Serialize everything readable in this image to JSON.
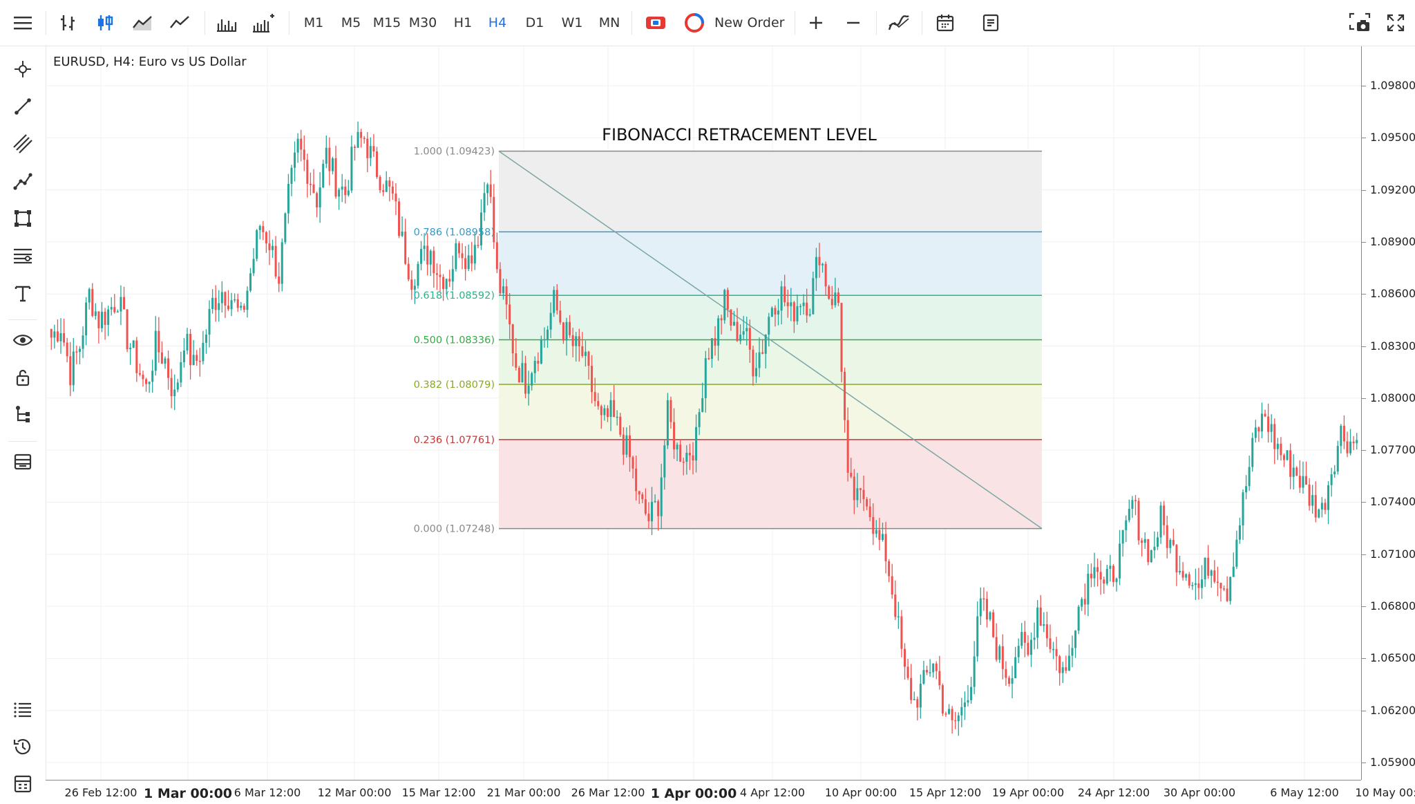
{
  "toolbar": {
    "menu_icon": "hamburger-menu-icon",
    "chart_types": [
      "bar-chart-icon",
      "candlestick-chart-icon",
      "area-chart-icon",
      "line-chart-icon",
      "volume-bars-icon",
      "indicators-bars-icon"
    ],
    "timeframes": [
      {
        "label": "M1",
        "active": false
      },
      {
        "label": "M5",
        "active": false
      },
      {
        "label": "M15",
        "active": false
      },
      {
        "label": "M30",
        "active": false
      },
      {
        "label": "H1",
        "active": false
      },
      {
        "label": "H4",
        "active": true
      },
      {
        "label": "D1",
        "active": false
      },
      {
        "label": "W1",
        "active": false
      },
      {
        "label": "MN",
        "active": false
      }
    ],
    "one_click_icon": "one-click-trading-icon",
    "new_order_label": "New Order",
    "zoom_in_icon": "plus-icon",
    "zoom_out_icon": "minus-icon",
    "indicators_icon": "indicators-icon",
    "calendar_icon": "calendar-icon",
    "templates_icon": "templates-icon",
    "screenshot_icon": "screenshot-icon",
    "fullscreen_icon": "fullscreen-icon"
  },
  "sidebar": {
    "tools": [
      "crosshair-icon",
      "trend-line-icon",
      "parallel-channel-icon",
      "polyline-icon",
      "shapes-icon",
      "fibonacci-icon",
      "text-icon",
      "eye-icon",
      "lock-icon",
      "object-tree-icon",
      "layers-icon"
    ],
    "bottom_tools": [
      "list-icon",
      "history-icon",
      "journal-icon"
    ]
  },
  "chart": {
    "symbol_label": "EURUSD, H4: Euro vs US Dollar",
    "title": "FIBONACCI RETRACEMENT LEVEL",
    "colors": {
      "up": "#26a69a",
      "down": "#ef5350"
    }
  },
  "chart_data": {
    "type": "candlestick",
    "symbol": "EURUSD",
    "timeframe": "H4",
    "ylim": [
      1.059,
      1.0985
    ],
    "price_ticks": [
      "1.09800",
      "1.09500",
      "1.09200",
      "1.08900",
      "1.08600",
      "1.08300",
      "1.08000",
      "1.07700",
      "1.07400",
      "1.07100",
      "1.06800",
      "1.06500",
      "1.06200",
      "1.05900"
    ],
    "time_ticks": [
      {
        "label": "26 Feb 12:00",
        "bold": false
      },
      {
        "label": "1 Mar 00:00",
        "bold": true
      },
      {
        "label": "6 Mar 12:00",
        "bold": false
      },
      {
        "label": "12 Mar 00:00",
        "bold": false
      },
      {
        "label": "15 Mar 12:00",
        "bold": false
      },
      {
        "label": "21 Mar 00:00",
        "bold": false
      },
      {
        "label": "26 Mar 12:00",
        "bold": false
      },
      {
        "label": "1 Apr 00:00",
        "bold": true
      },
      {
        "label": "4 Apr 12:00",
        "bold": false
      },
      {
        "label": "10 Apr 00:00",
        "bold": false
      },
      {
        "label": "15 Apr 12:00",
        "bold": false
      },
      {
        "label": "19 Apr 00:00",
        "bold": false
      },
      {
        "label": "24 Apr 12:00",
        "bold": false
      },
      {
        "label": "30 Apr 00:00",
        "bold": false
      },
      {
        "label": "6 May 12:00",
        "bold": false
      },
      {
        "label": "10 May 00:"
      }
    ],
    "close_path": [
      1.0835,
      1.0842,
      1.0815,
      1.083,
      1.086,
      1.0845,
      1.085,
      1.0858,
      1.0835,
      1.082,
      1.0805,
      1.083,
      1.0822,
      1.08,
      1.0835,
      1.0818,
      1.083,
      1.0855,
      1.0862,
      1.0858,
      1.0845,
      1.0872,
      1.09,
      1.089,
      1.087,
      1.0915,
      1.0945,
      1.0932,
      1.0915,
      1.094,
      1.0925,
      1.0918,
      1.0945,
      1.095,
      1.0935,
      1.0925,
      1.0915,
      1.089,
      1.087,
      1.088,
      1.0885,
      1.087,
      1.0872,
      1.089,
      1.088,
      1.0895,
      1.0932,
      1.087,
      1.085,
      1.082,
      1.081,
      1.0825,
      1.0835,
      1.0855,
      1.084,
      1.083,
      1.0825,
      1.0805,
      1.0785,
      1.079,
      1.078,
      1.0765,
      1.074,
      1.073,
      1.074,
      1.079,
      1.077,
      1.0768,
      1.0775,
      1.0825,
      1.0835,
      1.0855,
      1.0838,
      1.084,
      1.082,
      1.083,
      1.0855,
      1.086,
      1.0848,
      1.0858,
      1.0855,
      1.0885,
      1.086,
      1.0855,
      1.075,
      1.074,
      1.0745,
      1.072,
      1.071,
      1.068,
      1.064,
      1.0625,
      1.0635,
      1.065,
      1.0625,
      1.061,
      1.062,
      1.064,
      1.068,
      1.067,
      1.065,
      1.064,
      1.066,
      1.065,
      1.068,
      1.0665,
      1.065,
      1.064,
      1.0675,
      1.069,
      1.071,
      1.069,
      1.07,
      1.0715,
      1.074,
      1.072,
      1.071,
      1.073,
      1.0715,
      1.0705,
      1.07,
      1.069,
      1.0705,
      1.07,
      1.069,
      1.072,
      1.075,
      1.078,
      1.079,
      1.0775,
      1.0765,
      1.076,
      1.075,
      1.074,
      1.0735,
      1.076,
      1.078,
      1.0775
    ],
    "fibonacci": {
      "high": 1.09423,
      "low": 1.07248,
      "levels": [
        {
          "ratio": "1.000",
          "price": "1.09423",
          "label": "1.000 (1.09423)",
          "color": "#888888",
          "fill": "#eeeeee"
        },
        {
          "ratio": "0.786",
          "price": "1.08958",
          "label": "0.786 (1.08958)",
          "color": "#3399cc",
          "fill": "#e4f0f8"
        },
        {
          "ratio": "0.618",
          "price": "1.08592",
          "label": "0.618 (1.08592)",
          "color": "#2bb38a",
          "fill": "#e4f5ec"
        },
        {
          "ratio": "0.500",
          "price": "1.08336",
          "label": "0.500 (1.08336)",
          "color": "#33aa44",
          "fill": "#eaf7e6"
        },
        {
          "ratio": "0.382",
          "price": "1.08079",
          "label": "0.382 (1.08079)",
          "color": "#88aa22",
          "fill": "#f4f7e4"
        },
        {
          "ratio": "0.236",
          "price": "1.07761",
          "label": "0.236 (1.07761)",
          "color": "#cc3333",
          "fill": "#f9e3e4"
        },
        {
          "ratio": "0.000",
          "price": "1.07248",
          "label": "0.000 (1.07248)",
          "color": "#888888",
          "fill": null
        }
      ]
    }
  }
}
